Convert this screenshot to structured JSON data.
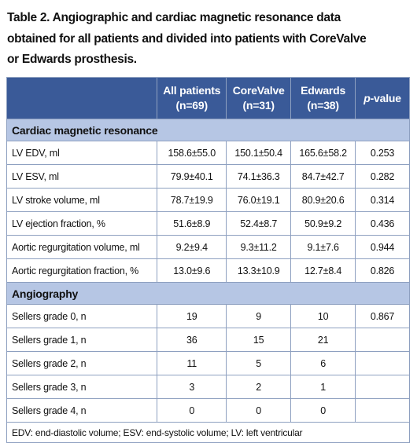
{
  "title": [
    "Table 2. Angiographic and cardiac magnetic resonance data",
    "obtained for all patients and divided into patients with CoreValve",
    "or Edwards prosthesis."
  ],
  "table": {
    "header": [
      {
        "lines": [
          "All patients",
          "(n=69)"
        ]
      },
      {
        "lines": [
          "CoreValve",
          "(n=31)"
        ]
      },
      {
        "lines": [
          "Edwards",
          "(n=38)"
        ]
      },
      {
        "italic": "p",
        "text": "-value"
      }
    ],
    "sections": [
      {
        "title": "Cardiac magnetic resonance",
        "rows": [
          [
            "LV EDV, ml",
            "158.6±55.0",
            "150.1±50.4",
            "165.6±58.2",
            "0.253"
          ],
          [
            "LV ESV, ml",
            "79.9±40.1",
            "74.1±36.3",
            "84.7±42.7",
            "0.282"
          ],
          [
            "LV stroke volume, ml",
            "78.7±19.9",
            "76.0±19.1",
            "80.9±20.6",
            "0.314"
          ],
          [
            "LV ejection fraction, %",
            "51.6±8.9",
            "52.4±8.7",
            "50.9±9.2",
            "0.436"
          ],
          [
            "Aortic regurgitation volume, ml",
            "9.2±9.4",
            "9.3±11.2",
            "9.1±7.6",
            "0.944"
          ],
          [
            "Aortic regurgitation fraction, %",
            "13.0±9.6",
            "13.3±10.9",
            "12.7±8.4",
            "0.826"
          ]
        ]
      },
      {
        "title": "Angiography",
        "rows": [
          [
            "Sellers grade 0, n",
            "19",
            "9",
            "10",
            "0.867"
          ],
          [
            "Sellers grade 1, n",
            "36",
            "15",
            "21",
            null
          ],
          [
            "Sellers grade 2, n",
            "11",
            "5",
            "6",
            null
          ],
          [
            "Sellers grade 3, n",
            "3",
            "2",
            "1",
            null
          ],
          [
            "Sellers grade 4, n",
            "0",
            "0",
            "0",
            null
          ]
        ]
      }
    ],
    "footnote": "EDV: end-diastolic volume; ESV: end-systolic volume; LV: left ventricular"
  }
}
